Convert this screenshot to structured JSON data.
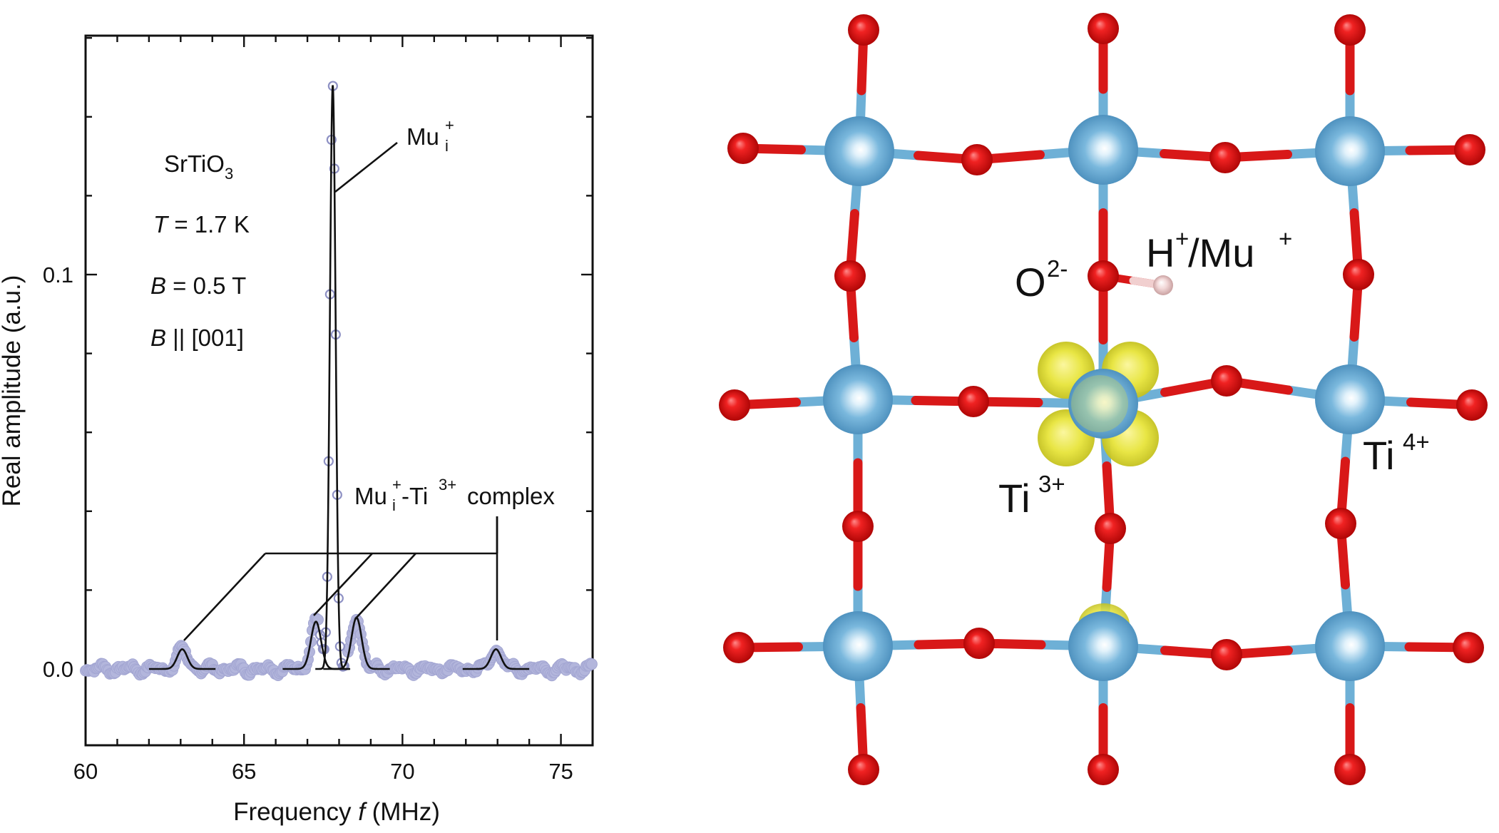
{
  "figure": {
    "left_panel": {
      "y_axis_label": "Real amplitude (a.u.)",
      "x_axis_label_pre": "Frequency ",
      "x_axis_label_var": "f",
      "x_axis_label_post": " (MHz)",
      "sample_label": {
        "base": "SrTiO",
        "sub": "3"
      },
      "temperature_label": {
        "var": "T",
        "rest": " = 1.7 K"
      },
      "field_label": {
        "var": "B",
        "rest": " = 0.5 T"
      },
      "orientation_label": {
        "var": "B",
        "rest": " || [001]"
      },
      "main_peak_label": {
        "base": "Mu",
        "sup": "+",
        "sub": "i"
      },
      "complex_label": {
        "base1": "Mu",
        "sup1": "+",
        "sub1": "i",
        "mid": "-Ti",
        "sup2": "3+",
        "tail": " complex"
      }
    },
    "right_panel": {
      "oxygen_label": {
        "base": "O",
        "sup": "2-"
      },
      "hydrogen_label": {
        "base1": "H",
        "sup1": "+",
        "mid": "/Mu",
        "sup2": "+"
      },
      "ti3_label": {
        "base": "Ti",
        "sup": "3+"
      },
      "ti4_label": {
        "base": "Ti",
        "sup": "4+"
      },
      "colors": {
        "ti": "#7ab8dd",
        "oxygen": "#dd1a1a",
        "hydrogen": "#f2d7d7",
        "spin_density": "#e7e43a"
      }
    }
  },
  "chart_data": {
    "type": "line",
    "xlabel": "Frequency f (MHz)",
    "ylabel": "Real amplitude (a.u.)",
    "xlim": [
      60,
      76
    ],
    "ylim": [
      -0.02,
      0.16
    ],
    "x_ticks": [
      60,
      65,
      70,
      75
    ],
    "y_ticks": [
      0.0,
      0.1
    ],
    "series": [
      {
        "name": "Mu_i^+",
        "type": "gaussian",
        "center": 67.8,
        "amplitude": 0.148,
        "sigma": 0.09
      },
      {
        "name": "Mu_i^+-Ti^3+ complex",
        "type": "gaussian",
        "center": 63.05,
        "amplitude": 0.005,
        "sigma": 0.16
      },
      {
        "name": "Mu_i^+-Ti^3+ complex",
        "type": "gaussian",
        "center": 67.27,
        "amplitude": 0.012,
        "sigma": 0.16
      },
      {
        "name": "Mu_i^+-Ti^3+ complex",
        "type": "gaussian",
        "center": 68.55,
        "amplitude": 0.013,
        "sigma": 0.16
      },
      {
        "name": "Mu_i^+-Ti^3+ complex",
        "type": "gaussian",
        "center": 72.95,
        "amplitude": 0.005,
        "sigma": 0.16
      }
    ]
  }
}
